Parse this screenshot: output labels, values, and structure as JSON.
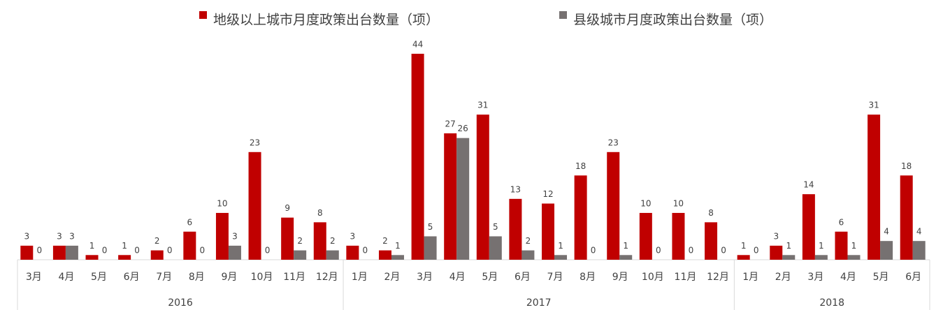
{
  "chart_data": {
    "type": "bar",
    "groups": [
      {
        "name": "2016",
        "categories": [
          "3月",
          "4月",
          "5月",
          "6月",
          "7月",
          "8月",
          "9月",
          "10月",
          "11月",
          "12月"
        ]
      },
      {
        "name": "2017",
        "categories": [
          "1月",
          "2月",
          "3月",
          "4月",
          "5月",
          "6月",
          "7月",
          "8月",
          "9月",
          "10月",
          "11月",
          "12月"
        ]
      },
      {
        "name": "2018",
        "categories": [
          "1月",
          "2月",
          "3月",
          "4月",
          "5月",
          "6月"
        ]
      }
    ],
    "series": [
      {
        "name": "地级以上城市月度政策出台数量（项）",
        "color": "#c00000",
        "values": [
          3,
          3,
          1,
          1,
          2,
          6,
          10,
          23,
          9,
          8,
          3,
          2,
          44,
          27,
          31,
          13,
          12,
          18,
          23,
          10,
          10,
          8,
          1,
          3,
          14,
          6,
          31,
          18
        ]
      },
      {
        "name": "县级城市月度政策出台数量（项）",
        "color": "#767171",
        "values": [
          0,
          3,
          0,
          0,
          0,
          0,
          3,
          0,
          2,
          2,
          0,
          1,
          5,
          26,
          5,
          2,
          1,
          0,
          1,
          0,
          0,
          0,
          0,
          1,
          1,
          1,
          4,
          4
        ]
      }
    ],
    "ylim": [
      0,
      44
    ]
  }
}
